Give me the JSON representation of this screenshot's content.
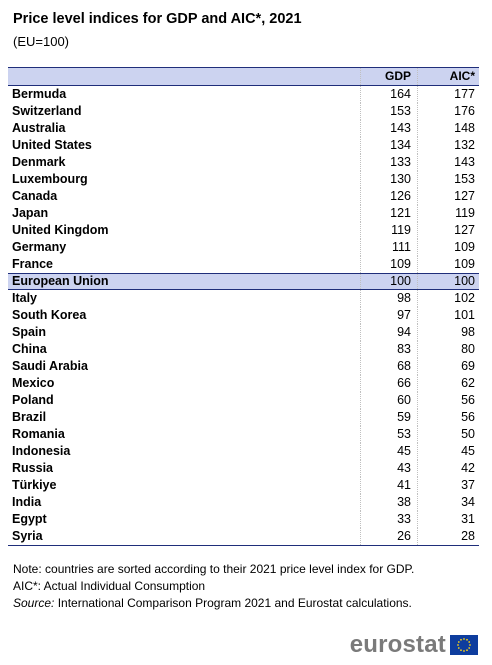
{
  "title": "Price level indices for GDP and AIC*, 2021",
  "subtitle": "(EU=100)",
  "columns": {
    "gdp": "GDP",
    "aic": "AIC*"
  },
  "rows": [
    {
      "name": "Bermuda",
      "gdp": "164",
      "aic": "177"
    },
    {
      "name": "Switzerland",
      "gdp": "153",
      "aic": "176"
    },
    {
      "name": "Australia",
      "gdp": "143",
      "aic": "148"
    },
    {
      "name": "United States",
      "gdp": "134",
      "aic": "132"
    },
    {
      "name": "Denmark",
      "gdp": "133",
      "aic": "143"
    },
    {
      "name": "Luxembourg",
      "gdp": "130",
      "aic": "153"
    },
    {
      "name": "Canada",
      "gdp": "126",
      "aic": "127"
    },
    {
      "name": "Japan",
      "gdp": "121",
      "aic": "119"
    },
    {
      "name": "United Kingdom",
      "gdp": "119",
      "aic": "127"
    },
    {
      "name": "Germany",
      "gdp": "111",
      "aic": "109"
    },
    {
      "name": "France",
      "gdp": "109",
      "aic": "109"
    },
    {
      "name": "European Union",
      "gdp": "100",
      "aic": "100"
    },
    {
      "name": "Italy",
      "gdp": "98",
      "aic": "102"
    },
    {
      "name": "South Korea",
      "gdp": "97",
      "aic": "101"
    },
    {
      "name": "Spain",
      "gdp": "94",
      "aic": "98"
    },
    {
      "name": "China",
      "gdp": "83",
      "aic": "80"
    },
    {
      "name": "Saudi Arabia",
      "gdp": "68",
      "aic": "69"
    },
    {
      "name": "Mexico",
      "gdp": "66",
      "aic": "62"
    },
    {
      "name": "Poland",
      "gdp": "60",
      "aic": "56"
    },
    {
      "name": "Brazil",
      "gdp": "59",
      "aic": "56"
    },
    {
      "name": "Romania",
      "gdp": "53",
      "aic": "50"
    },
    {
      "name": "Indonesia",
      "gdp": "45",
      "aic": "45"
    },
    {
      "name": "Russia",
      "gdp": "43",
      "aic": "42"
    },
    {
      "name": "Türkiye",
      "gdp": "41",
      "aic": "37"
    },
    {
      "name": "India",
      "gdp": "38",
      "aic": "34"
    },
    {
      "name": "Egypt",
      "gdp": "33",
      "aic": "31"
    },
    {
      "name": "Syria",
      "gdp": "26",
      "aic": "28"
    }
  ],
  "notes": {
    "note": "Note: countries are sorted according to their 2021 price level index for GDP.",
    "aic": "AIC*: Actual Individual Consumption",
    "source_label": "Source:",
    "source_text": " International Comparison Program 2021 and Eurostat calculations."
  },
  "logo": {
    "text": "eurostat",
    "icon": "eu-flag-icon"
  }
}
